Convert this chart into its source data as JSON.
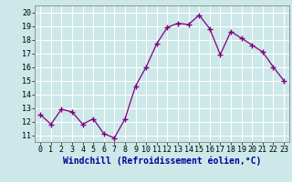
{
  "x": [
    0,
    1,
    2,
    3,
    4,
    5,
    6,
    7,
    8,
    9,
    10,
    11,
    12,
    13,
    14,
    15,
    16,
    17,
    18,
    19,
    20,
    21,
    22,
    23
  ],
  "y": [
    12.5,
    11.8,
    12.9,
    12.7,
    11.8,
    12.2,
    11.1,
    10.8,
    12.2,
    14.6,
    16.0,
    17.7,
    18.9,
    19.2,
    19.1,
    19.8,
    18.8,
    16.9,
    18.6,
    18.1,
    17.6,
    17.1,
    16.0,
    15.0
  ],
  "line_color": "#800080",
  "marker": "+",
  "marker_size": 4,
  "xlabel": "Windchill (Refroidissement éolien,°C)",
  "xlim": [
    -0.5,
    23.5
  ],
  "ylim": [
    10.5,
    20.5
  ],
  "yticks": [
    11,
    12,
    13,
    14,
    15,
    16,
    17,
    18,
    19,
    20
  ],
  "xticks": [
    0,
    1,
    2,
    3,
    4,
    5,
    6,
    7,
    8,
    9,
    10,
    11,
    12,
    13,
    14,
    15,
    16,
    17,
    18,
    19,
    20,
    21,
    22,
    23
  ],
  "bg_color": "#cce8e8",
  "grid_color": "#ffffff",
  "tick_fontsize": 6,
  "xlabel_fontsize": 7,
  "xlabel_color": "#000099"
}
